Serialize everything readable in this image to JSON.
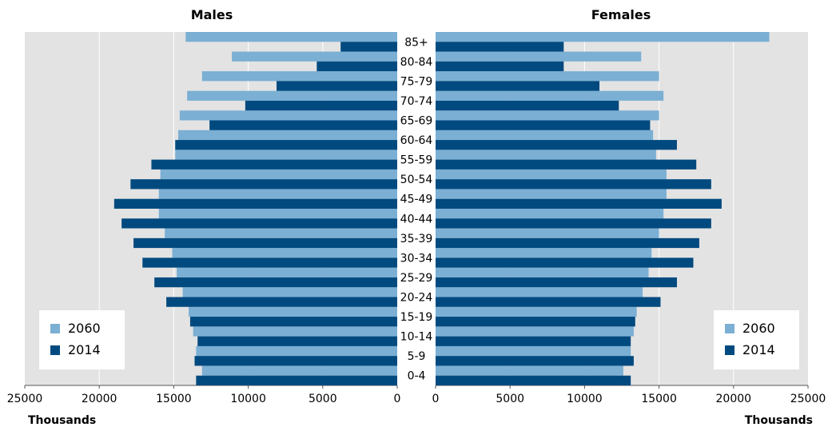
{
  "chart_data": {
    "type": "bar",
    "orientation": "horizontal",
    "layout": "population pyramid",
    "grid": true,
    "legend_position": "bottom-left and bottom-right",
    "colors": {
      "2060": "#7bafd4",
      "2014": "#004a7f",
      "plot_background": "#e3e3e3"
    },
    "categories": [
      "85+",
      "80-84",
      "75-79",
      "70-74",
      "65-69",
      "60-64",
      "55-59",
      "50-54",
      "45-49",
      "40-44",
      "35-39",
      "30-34",
      "25-29",
      "20-24",
      "15-19",
      "10-14",
      "5-9",
      "0-4"
    ],
    "legend": [
      "2060",
      "2014"
    ],
    "panels": [
      {
        "title": "Males",
        "xlabel": "Thousands",
        "xlim": [
          25000,
          0
        ],
        "ticks": [
          "25000",
          "20000",
          "15000",
          "10000",
          "5000",
          "0"
        ],
        "series": [
          {
            "name": "2060",
            "values": [
              14200,
              11100,
              13100,
              14100,
              14600,
              14700,
              14900,
              15900,
              16000,
              16000,
              15600,
              15100,
              14800,
              14400,
              14000,
              13700,
              13500,
              13100
            ]
          },
          {
            "name": "2014",
            "values": [
              3800,
              5400,
              8100,
              10200,
              12600,
              14900,
              16500,
              17900,
              19000,
              18500,
              17700,
              17100,
              16300,
              15500,
              13900,
              13400,
              13600,
              13500
            ]
          }
        ]
      },
      {
        "title": "Females",
        "xlabel": "Thousands",
        "xlim": [
          0,
          25000
        ],
        "ticks": [
          "0",
          "5000",
          "10000",
          "15000",
          "20000",
          "25000"
        ],
        "series": [
          {
            "name": "2060",
            "values": [
              22400,
              13800,
              15000,
              15300,
              15000,
              14600,
              14800,
              15500,
              15500,
              15300,
              15000,
              14500,
              14300,
              13900,
              13500,
              13300,
              13100,
              12600
            ]
          },
          {
            "name": "2014",
            "values": [
              8600,
              8600,
              11000,
              12300,
              14400,
              16200,
              17500,
              18500,
              19200,
              18500,
              17700,
              17300,
              16200,
              15100,
              13400,
              13100,
              13300,
              13100
            ]
          }
        ]
      }
    ]
  }
}
